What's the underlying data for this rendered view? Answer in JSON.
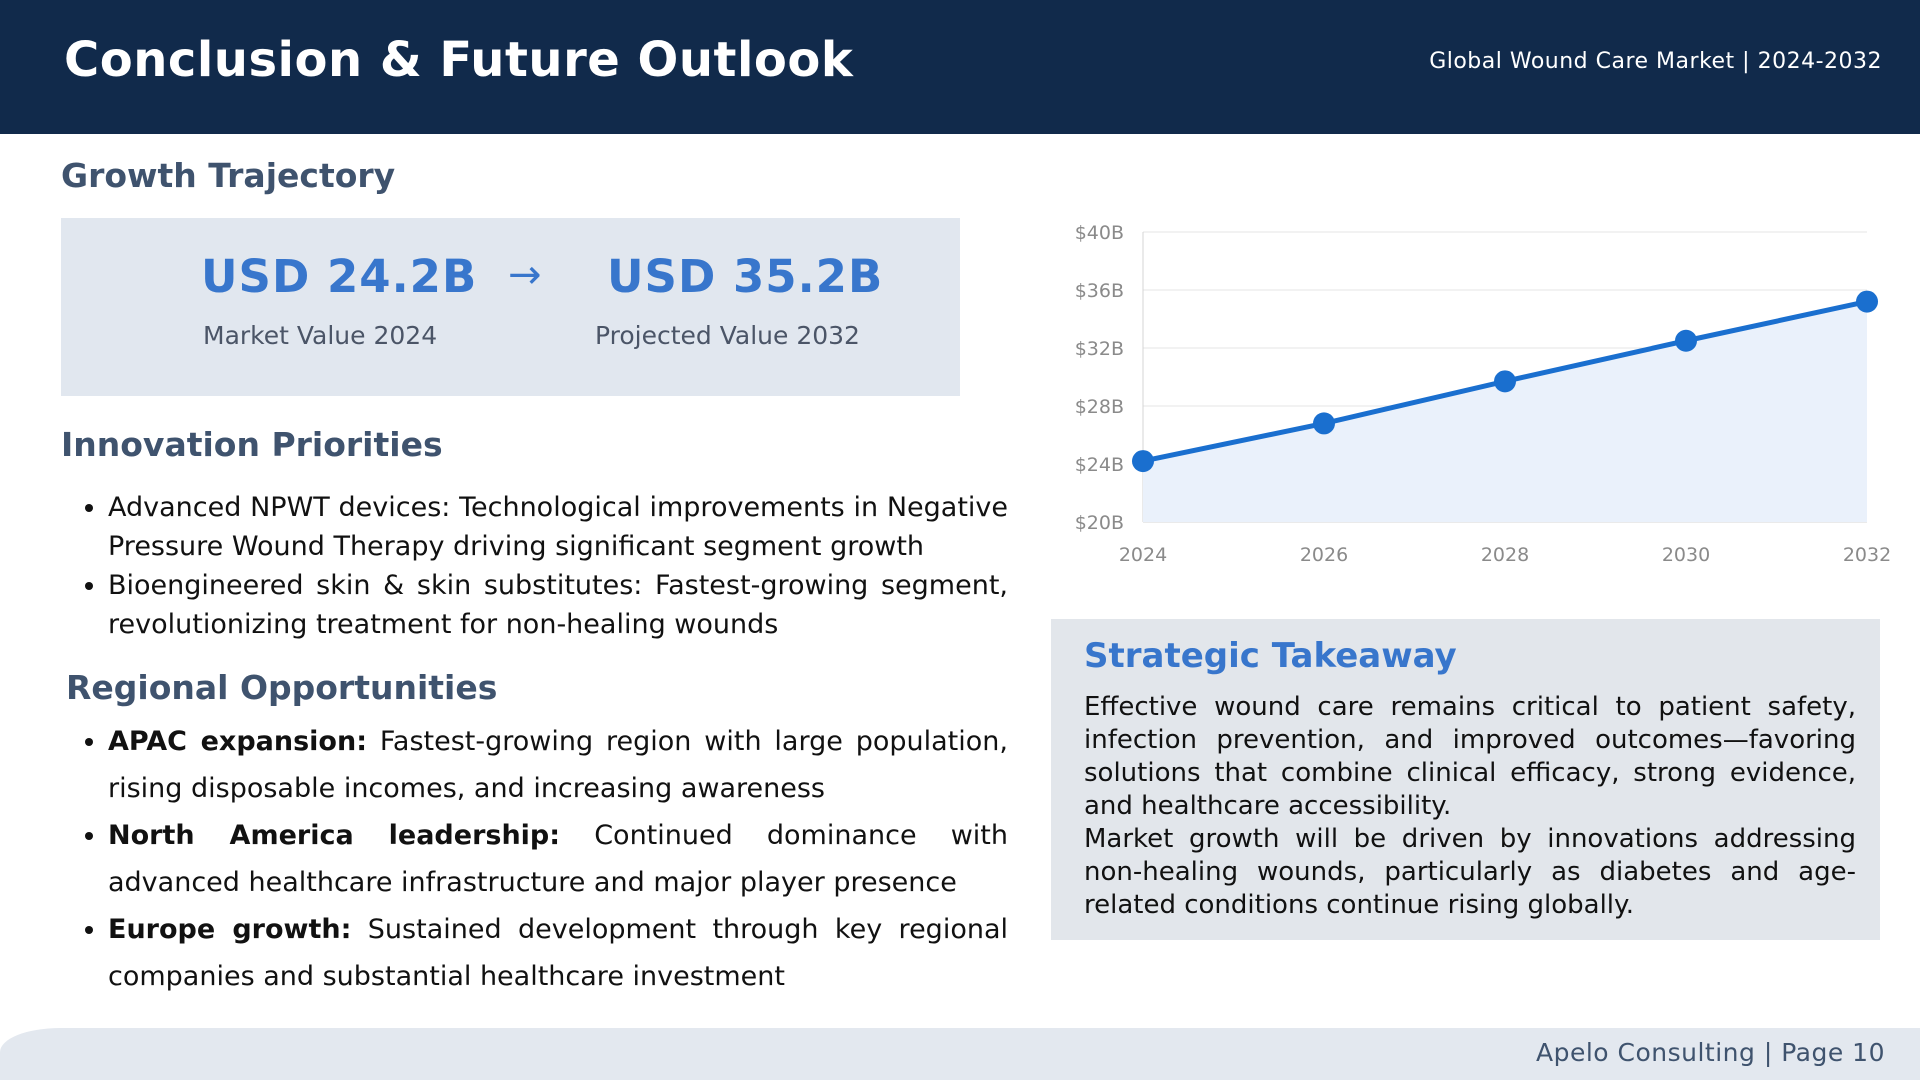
{
  "header": {
    "title": "Conclusion & Future Outlook",
    "subtitle": "Global Wound Care Market | 2024-2032"
  },
  "growth": {
    "title": "Growth Trajectory",
    "from_value": "USD 24.2B",
    "from_label": "Market Value 2024",
    "arrow": "→",
    "to_value": "USD 35.2B",
    "to_label": "Projected Value 2032"
  },
  "innovation": {
    "title": "Innovation Priorities",
    "items": [
      "Advanced NPWT devices: Technological improvements in Negative Pressure Wound Therapy driving significant segment growth",
      "Bioengineered skin & skin substitutes: Fastest-growing segment, revolutionizing treatment for non-healing wounds"
    ]
  },
  "regional": {
    "title": "Regional Opportunities",
    "items": [
      {
        "lead": "APAC expansion:",
        "text": " Fastest-growing region with large population, rising disposable incomes, and increasing awareness"
      },
      {
        "lead": "North America leadership:",
        "text": " Continued dominance with advanced healthcare infrastructure and major player presence"
      },
      {
        "lead": "Europe growth:",
        "text": " Sustained development through key regional companies and substantial healthcare investment"
      }
    ]
  },
  "takeaway": {
    "title": "Strategic Takeaway",
    "para1": "Effective wound care remains critical to patient safety, infection prevention, and improved outcomes—favoring solutions that combine clinical efficacy, strong evidence, and healthcare accessibility.",
    "para2": "Market growth will be driven by innovations addressing non-healing wounds, particularly as diabetes and age-related conditions continue rising globally."
  },
  "footer": {
    "text": "Apelo Consulting | Page 10"
  },
  "colors": {
    "header_bg": "#112a4b",
    "accent": "#3876cc",
    "line": "#1a6fcf",
    "area": "#eaf1fb",
    "panel_bg": "#e1e7ef"
  },
  "chart_data": {
    "type": "area",
    "title": "",
    "xlabel": "",
    "ylabel": "",
    "x": [
      2024,
      2026,
      2028,
      2030,
      2032
    ],
    "values": [
      24.2,
      26.8,
      29.7,
      32.5,
      35.2
    ],
    "ylim": [
      20,
      40
    ],
    "yticks": [
      20,
      24,
      28,
      32,
      36,
      40
    ],
    "ytick_labels": [
      "$20B",
      "$24B",
      "$28B",
      "$32B",
      "$36B",
      "$40B"
    ],
    "xtick_labels": [
      "2024",
      "2026",
      "2028",
      "2030",
      "2032"
    ],
    "grid": true,
    "legend": "none"
  }
}
